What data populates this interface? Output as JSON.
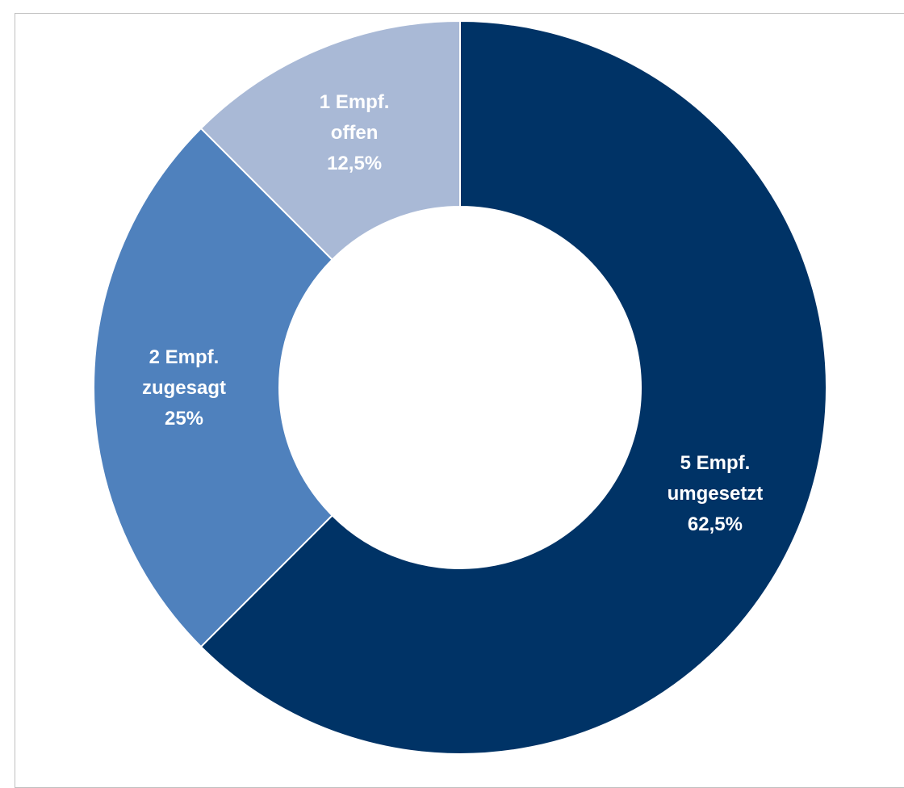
{
  "chart_data": {
    "type": "pie",
    "variant": "donut",
    "slices": [
      {
        "label_lines": [
          "5 Empf.",
          "umgesetzt",
          "62,5%"
        ],
        "count": 5,
        "percent": 62.5,
        "color": "#003366",
        "text_color": "#ffffff"
      },
      {
        "label_lines": [
          "2 Empf.",
          "zugesagt",
          "25%"
        ],
        "count": 2,
        "percent": 25,
        "color": "#4f81bd",
        "text_color": "#ffffff"
      },
      {
        "label_lines": [
          "1 Empf.",
          "offen",
          "12,5%"
        ],
        "count": 1,
        "percent": 12.5,
        "color": "#a9b9d6",
        "text_color": "#ffffff"
      }
    ],
    "legend": false
  }
}
